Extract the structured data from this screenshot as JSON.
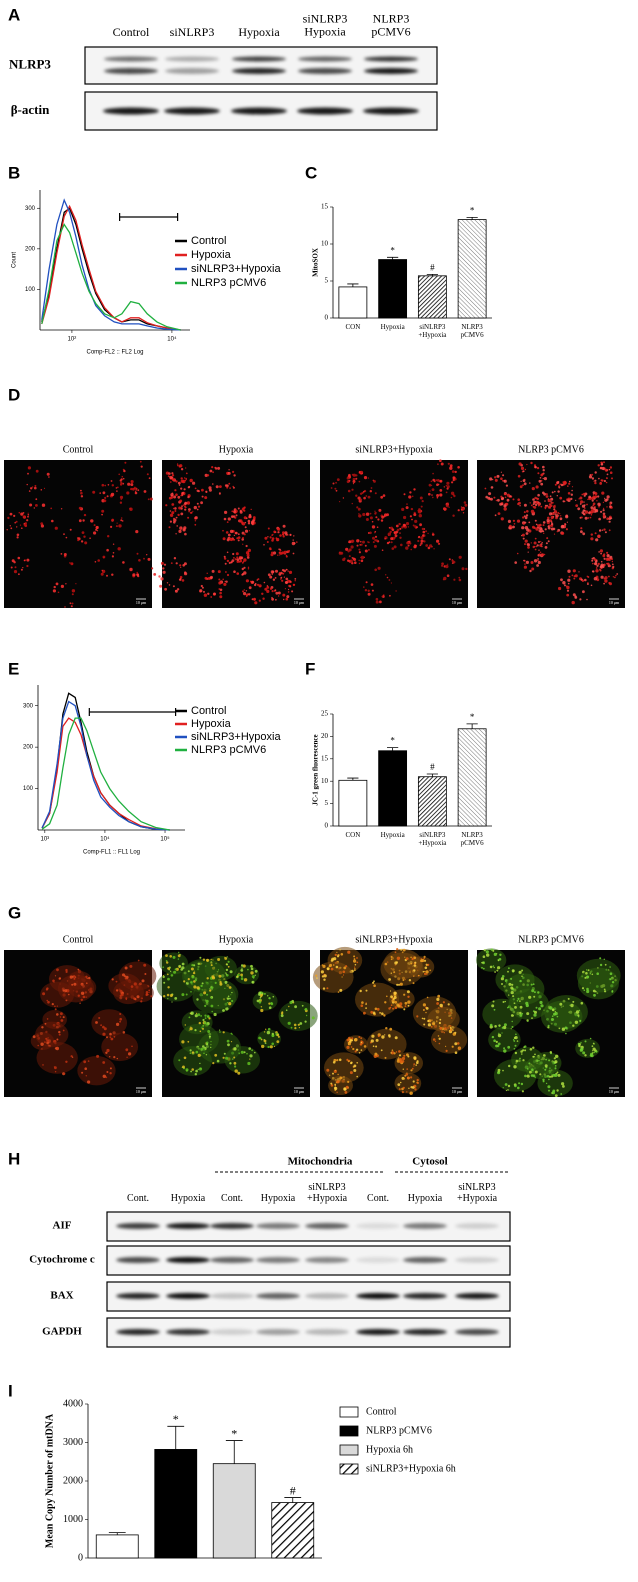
{
  "panel_labels": [
    "A",
    "B",
    "C",
    "D",
    "E",
    "F",
    "G",
    "H",
    "I"
  ],
  "blot_A": {
    "columns": [
      "Control",
      "siNLRP3",
      "Hypoxia",
      "siNLRP3\nHypoxia",
      "NLRP3\npCMV6"
    ],
    "rows": [
      "NLRP3",
      "β-actin"
    ]
  },
  "micrographs_D": {
    "labels": [
      "Control",
      "Hypoxia",
      "siNLRP3+Hypoxia",
      "NLRP3 pCMV6"
    ],
    "scale_bar": "10 μm"
  },
  "micrographs_G": {
    "labels": [
      "Control",
      "Hypoxia",
      "siNLRP3+Hypoxia",
      "NLRP3 pCMV6"
    ],
    "scale_bar": "10 μm"
  },
  "blot_H": {
    "groups": [
      "Mitochondria",
      "Cytosol"
    ],
    "columns": [
      "Cont.",
      "Hypoxia",
      "Cont.",
      "Hypoxia",
      "siNLRP3\n+Hypoxia",
      "Cont.",
      "Hypoxia",
      "siNLRP3\n+Hypoxia"
    ],
    "rows": [
      "AIF",
      "Cytochrome c",
      "BAX",
      "GAPDH"
    ]
  },
  "chart_data": [
    {
      "type": "line",
      "x_label": "Comp-FL2 :: FL2 Log",
      "y_label": "Count",
      "xscale": "log",
      "x": [
        25,
        35,
        50,
        70,
        90,
        120,
        160,
        220,
        300,
        450,
        700,
        1000,
        1500,
        2200,
        3200,
        5000,
        8000,
        15000
      ],
      "xlim": [
        23,
        23000
      ],
      "xticks": [
        {
          "value": 100,
          "label": "10²"
        },
        {
          "value": 10000,
          "label": "10⁴"
        }
      ],
      "ylim": [
        0,
        345
      ],
      "yticks": [
        100,
        200,
        300
      ],
      "gate": [
        900,
        13000
      ],
      "legend": "right",
      "series": [
        {
          "name": "Control",
          "color": "#000000",
          "values": [
            20,
            90,
            200,
            290,
            300,
            260,
            200,
            140,
            90,
            50,
            30,
            20,
            25,
            25,
            15,
            10,
            5,
            0
          ]
        },
        {
          "name": "Hypoxia",
          "color": "#e02020",
          "values": [
            15,
            80,
            190,
            280,
            305,
            270,
            210,
            150,
            95,
            55,
            30,
            20,
            30,
            30,
            18,
            10,
            5,
            0
          ]
        },
        {
          "name": "siNLRP3+Hypoxia",
          "color": "#2050c0",
          "values": [
            25,
            150,
            260,
            320,
            290,
            230,
            160,
            100,
            60,
            35,
            20,
            15,
            15,
            15,
            10,
            5,
            2,
            0
          ]
        },
        {
          "name": "NLRP3 pCMV6",
          "color": "#20b040",
          "values": [
            15,
            100,
            220,
            260,
            240,
            190,
            140,
            95,
            65,
            40,
            30,
            40,
            70,
            65,
            40,
            20,
            8,
            0
          ]
        }
      ]
    },
    {
      "type": "bar",
      "y_label": "MitoSOX",
      "categories": [
        "CON",
        "Hypoxia",
        "siNLRP3\n+Hypoxia",
        "NLRP3\npCMV6"
      ],
      "values": [
        4.2,
        7.9,
        5.7,
        13.3
      ],
      "errors": [
        0.4,
        0.3,
        0.2,
        0.3
      ],
      "annotations": [
        null,
        "*",
        "#",
        "*"
      ],
      "fills": [
        "white",
        "black",
        "hatch",
        "hatch-light"
      ],
      "ylim": [
        0,
        15
      ],
      "yticks": [
        0,
        5,
        10,
        15
      ]
    },
    {
      "type": "line",
      "x_label": "Comp-FL1 :: FL1 Log",
      "xscale": "log",
      "x": [
        900,
        1200,
        1600,
        2000,
        2500,
        3200,
        4000,
        5000,
        6500,
        8500,
        12000,
        17000,
        25000,
        40000,
        70000,
        120000
      ],
      "xlim": [
        770,
        215000
      ],
      "xticks": [
        {
          "value": 1000,
          "label": "10³"
        },
        {
          "value": 10000,
          "label": "10⁴"
        },
        {
          "value": 100000,
          "label": "10⁵"
        }
      ],
      "ylim": [
        0,
        350
      ],
      "yticks": [
        100,
        200,
        300
      ],
      "gate": [
        5500,
        150000
      ],
      "legend": "right",
      "series": [
        {
          "name": "Control",
          "color": "#000000",
          "values": [
            5,
            40,
            150,
            280,
            330,
            320,
            260,
            190,
            130,
            90,
            60,
            40,
            20,
            8,
            2,
            0
          ]
        },
        {
          "name": "Hypoxia",
          "color": "#e02020",
          "values": [
            5,
            40,
            140,
            250,
            270,
            260,
            230,
            180,
            130,
            90,
            60,
            40,
            25,
            10,
            3,
            0
          ]
        },
        {
          "name": "siNLRP3+Hypoxia",
          "color": "#2050c0",
          "values": [
            5,
            45,
            160,
            270,
            310,
            300,
            250,
            180,
            120,
            80,
            55,
            35,
            20,
            8,
            2,
            0
          ]
        },
        {
          "name": "NLRP3 pCMV6",
          "color": "#20b040",
          "values": [
            2,
            15,
            60,
            150,
            230,
            270,
            270,
            240,
            190,
            140,
            100,
            70,
            45,
            20,
            6,
            0
          ]
        }
      ]
    },
    {
      "type": "bar",
      "y_label": "JC-1 green fluorescence",
      "categories": [
        "CON",
        "Hypoxia",
        "siNLRP3\n+Hypoxia",
        "NLRP3\npCMV6"
      ],
      "values": [
        10.2,
        16.8,
        11,
        21.7
      ],
      "errors": [
        0.5,
        0.7,
        0.6,
        1.1
      ],
      "annotations": [
        null,
        "*",
        "#",
        "*"
      ],
      "fills": [
        "white",
        "black",
        "hatch",
        "hatch-light"
      ],
      "ylim": [
        0,
        25
      ],
      "yticks": [
        0,
        5,
        10,
        15,
        20,
        25
      ]
    },
    {
      "type": "bar",
      "y_label": "Mean Copy Number of mtDNA",
      "legend": "right",
      "ylim": [
        0,
        4000
      ],
      "yticks": [
        0,
        1000,
        2000,
        3000,
        4000
      ],
      "series": [
        {
          "name": "Control",
          "fill": "white",
          "values": [
            600
          ],
          "errors": [
            60
          ],
          "annotation": null
        },
        {
          "name": "NLRP3 pCMV6",
          "fill": "black",
          "values": [
            2820
          ],
          "errors": [
            600
          ],
          "annotation": "*"
        },
        {
          "name": "Hypoxia 6h",
          "fill": "#d9d9d9",
          "values": [
            2450
          ],
          "errors": [
            600
          ],
          "annotation": "*"
        },
        {
          "name": "siNLRP3+Hypoxia 6h",
          "fill": "hatch-wide",
          "values": [
            1440
          ],
          "errors": [
            130
          ],
          "annotation": "#"
        }
      ]
    }
  ]
}
